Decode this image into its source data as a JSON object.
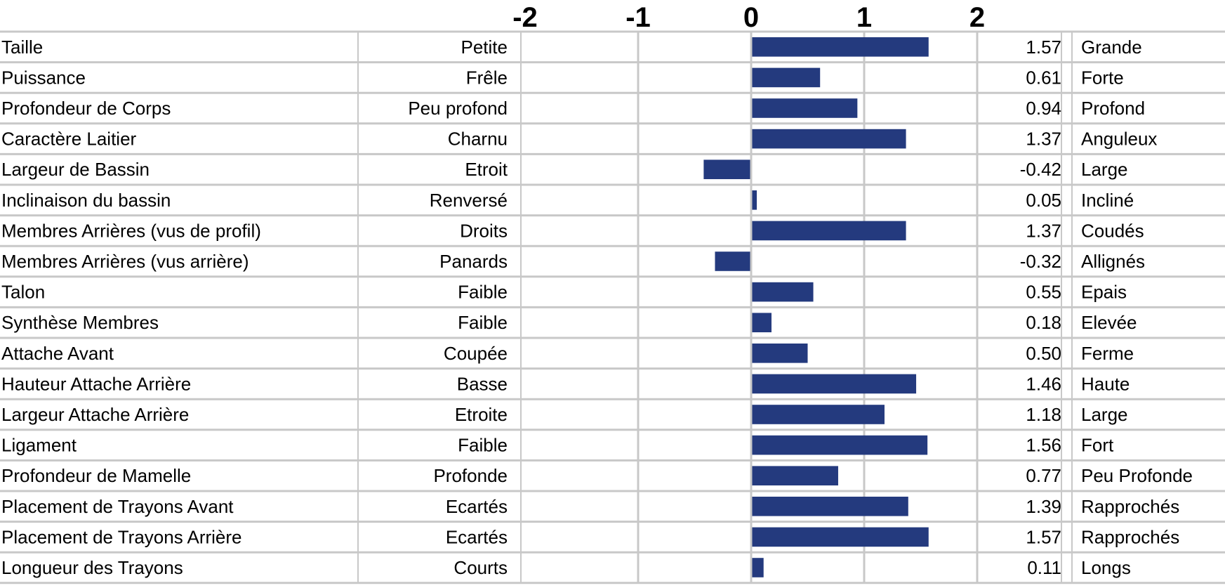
{
  "chart_data": {
    "type": "bar",
    "orientation": "horizontal",
    "title": "",
    "xlabel": "",
    "ylabel": "",
    "xlim": [
      -2,
      2
    ],
    "ticks": [
      "-2",
      "-1",
      "0",
      "1",
      "2"
    ],
    "tick_values": [
      -2,
      -1,
      0,
      1,
      2
    ],
    "bar_color": "#243a7e",
    "grid_color": "#c8c8c8",
    "grid": true,
    "legend": "none",
    "rows": [
      {
        "trait": "Taille",
        "low": "Petite",
        "value": 1.57,
        "value_label": "1.57",
        "high": "Grande"
      },
      {
        "trait": "Puissance",
        "low": "Frêle",
        "value": 0.61,
        "value_label": "0.61",
        "high": "Forte"
      },
      {
        "trait": "Profondeur de Corps",
        "low": "Peu profond",
        "value": 0.94,
        "value_label": "0.94",
        "high": "Profond"
      },
      {
        "trait": "Caractère Laitier",
        "low": "Charnu",
        "value": 1.37,
        "value_label": "1.37",
        "high": "Anguleux"
      },
      {
        "trait": "Largeur de Bassin",
        "low": "Etroit",
        "value": -0.42,
        "value_label": "-0.42",
        "high": "Large"
      },
      {
        "trait": "Inclinaison du bassin",
        "low": "Renversé",
        "value": 0.05,
        "value_label": "0.05",
        "high": "Incliné"
      },
      {
        "trait": "Membres Arrières (vus de profil)",
        "low": "Droits",
        "value": 1.37,
        "value_label": "1.37",
        "high": "Coudés"
      },
      {
        "trait": "Membres Arrières (vus arrière)",
        "low": "Panards",
        "value": -0.32,
        "value_label": "-0.32",
        "high": "Allignés"
      },
      {
        "trait": "Talon",
        "low": "Faible",
        "value": 0.55,
        "value_label": "0.55",
        "high": "Epais"
      },
      {
        "trait": "Synthèse Membres",
        "low": "Faible",
        "value": 0.18,
        "value_label": "0.18",
        "high": "Elevée"
      },
      {
        "trait": "Attache Avant",
        "low": "Coupée",
        "value": 0.5,
        "value_label": "0.50",
        "high": "Ferme"
      },
      {
        "trait": "Hauteur Attache Arrière",
        "low": "Basse",
        "value": 1.46,
        "value_label": "1.46",
        "high": "Haute"
      },
      {
        "trait": "Largeur Attache Arrière",
        "low": "Etroite",
        "value": 1.18,
        "value_label": "1.18",
        "high": "Large"
      },
      {
        "trait": "Ligament",
        "low": "Faible",
        "value": 1.56,
        "value_label": "1.56",
        "high": "Fort"
      },
      {
        "trait": "Profondeur de Mamelle",
        "low": "Profonde",
        "value": 0.77,
        "value_label": "0.77",
        "high": "Peu Profonde"
      },
      {
        "trait": "Placement de Trayons Avant",
        "low": "Ecartés",
        "value": 1.39,
        "value_label": "1.39",
        "high": "Rapprochés"
      },
      {
        "trait": "Placement de Trayons Arrière",
        "low": "Ecartés",
        "value": 1.57,
        "value_label": "1.57",
        "high": "Rapprochés"
      },
      {
        "trait": "Longueur des Trayons",
        "low": "Courts",
        "value": 0.11,
        "value_label": "0.11",
        "high": "Longs"
      }
    ]
  }
}
